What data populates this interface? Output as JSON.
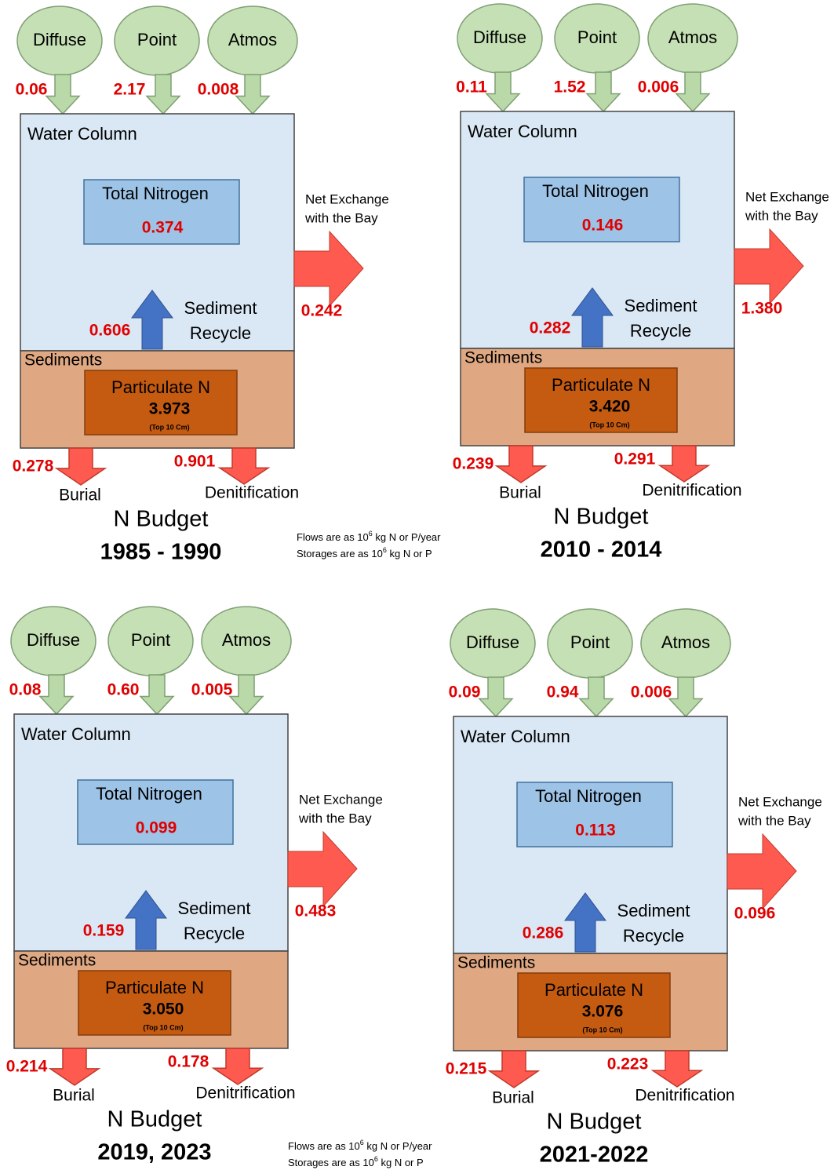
{
  "panels": [
    {
      "sources": [
        {
          "label": "Diffuse",
          "value": "0.06"
        },
        {
          "label": "Point",
          "value": "2.17"
        },
        {
          "label": "Atmos",
          "value": "0.008"
        }
      ],
      "water_column": "Water Column",
      "total_label": "Total Nitrogen",
      "total_value": "0.374",
      "exchange_label": [
        "Net Exchange",
        "with the Bay"
      ],
      "exchange_value": "0.242",
      "recycle_label": [
        "Sediment",
        "Recycle"
      ],
      "recycle_value": "0.606",
      "sediments": "Sediments",
      "particulate_label": "Particulate N",
      "particulate_value": "3.973",
      "particulate_note": "(Top 10 Cm)",
      "burial_label": "Burial",
      "burial_value": "0.278",
      "denitrification_label": "Denitification",
      "denitrification_value": "0.901",
      "title": "N Budget",
      "period": "1985 - 1990"
    },
    {
      "sources": [
        {
          "label": "Diffuse",
          "value": "0.11"
        },
        {
          "label": "Point",
          "value": "1.52"
        },
        {
          "label": "Atmos",
          "value": "0.006"
        }
      ],
      "water_column": "Water Column",
      "total_label": "Total Nitrogen",
      "total_value": "0.146",
      "exchange_label": [
        "Net Exchange",
        "with the Bay"
      ],
      "exchange_value": "1.380",
      "recycle_label": [
        "Sediment",
        "Recycle"
      ],
      "recycle_value": "0.282",
      "sediments": "Sediments",
      "particulate_label": "Particulate N",
      "particulate_value": "3.420",
      "particulate_note": "(Top 10 Cm)",
      "burial_label": "Burial",
      "burial_value": "0.239",
      "denitrification_label": "Denitrification",
      "denitrification_value": "0.291",
      "title": "N Budget",
      "period": "2010 - 2014"
    },
    {
      "sources": [
        {
          "label": "Diffuse",
          "value": "0.08"
        },
        {
          "label": "Point",
          "value": "0.60"
        },
        {
          "label": "Atmos",
          "value": "0.005"
        }
      ],
      "water_column": "Water Column",
      "total_label": "Total Nitrogen",
      "total_value": "0.099",
      "exchange_label": [
        "Net Exchange",
        "with the Bay"
      ],
      "exchange_value": "0.483",
      "recycle_label": [
        "Sediment",
        "Recycle"
      ],
      "recycle_value": "0.159",
      "sediments": "Sediments",
      "particulate_label": "Particulate N",
      "particulate_value": "3.050",
      "particulate_note": "(Top 10 Cm)",
      "burial_label": "Burial",
      "burial_value": "0.214",
      "denitrification_label": "Denitrification",
      "denitrification_value": "0.178",
      "title": "N Budget",
      "period": "2019, 2023"
    },
    {
      "sources": [
        {
          "label": "Diffuse",
          "value": "0.09"
        },
        {
          "label": "Point",
          "value": "0.94"
        },
        {
          "label": "Atmos",
          "value": "0.006"
        }
      ],
      "water_column": "Water Column",
      "total_label": "Total Nitrogen",
      "total_value": "0.113",
      "exchange_label": [
        "Net Exchange",
        "with the Bay"
      ],
      "exchange_value": "0.096",
      "recycle_label": [
        "Sediment",
        "Recycle"
      ],
      "recycle_value": "0.286",
      "sediments": "Sediments",
      "particulate_label": "Particulate N",
      "particulate_value": "3.076",
      "particulate_note": "(Top 10 Cm)",
      "burial_label": "Burial",
      "burial_value": "0.215",
      "denitrification_label": "Denitrification",
      "denitrification_value": "0.223",
      "title": "N Budget",
      "period": "2021-2022"
    }
  ],
  "notes": [
    {
      "flows": [
        "Flows are as  10",
        "6",
        " kg N or P/year"
      ],
      "storages": [
        "Storages are as 10",
        "6",
        " kg N or P"
      ]
    },
    {
      "flows": [
        "Flows are as  10",
        "6",
        " kg N or P/year"
      ],
      "storages": [
        "Storages are as 10",
        "6",
        " kg N or P"
      ]
    }
  ]
}
